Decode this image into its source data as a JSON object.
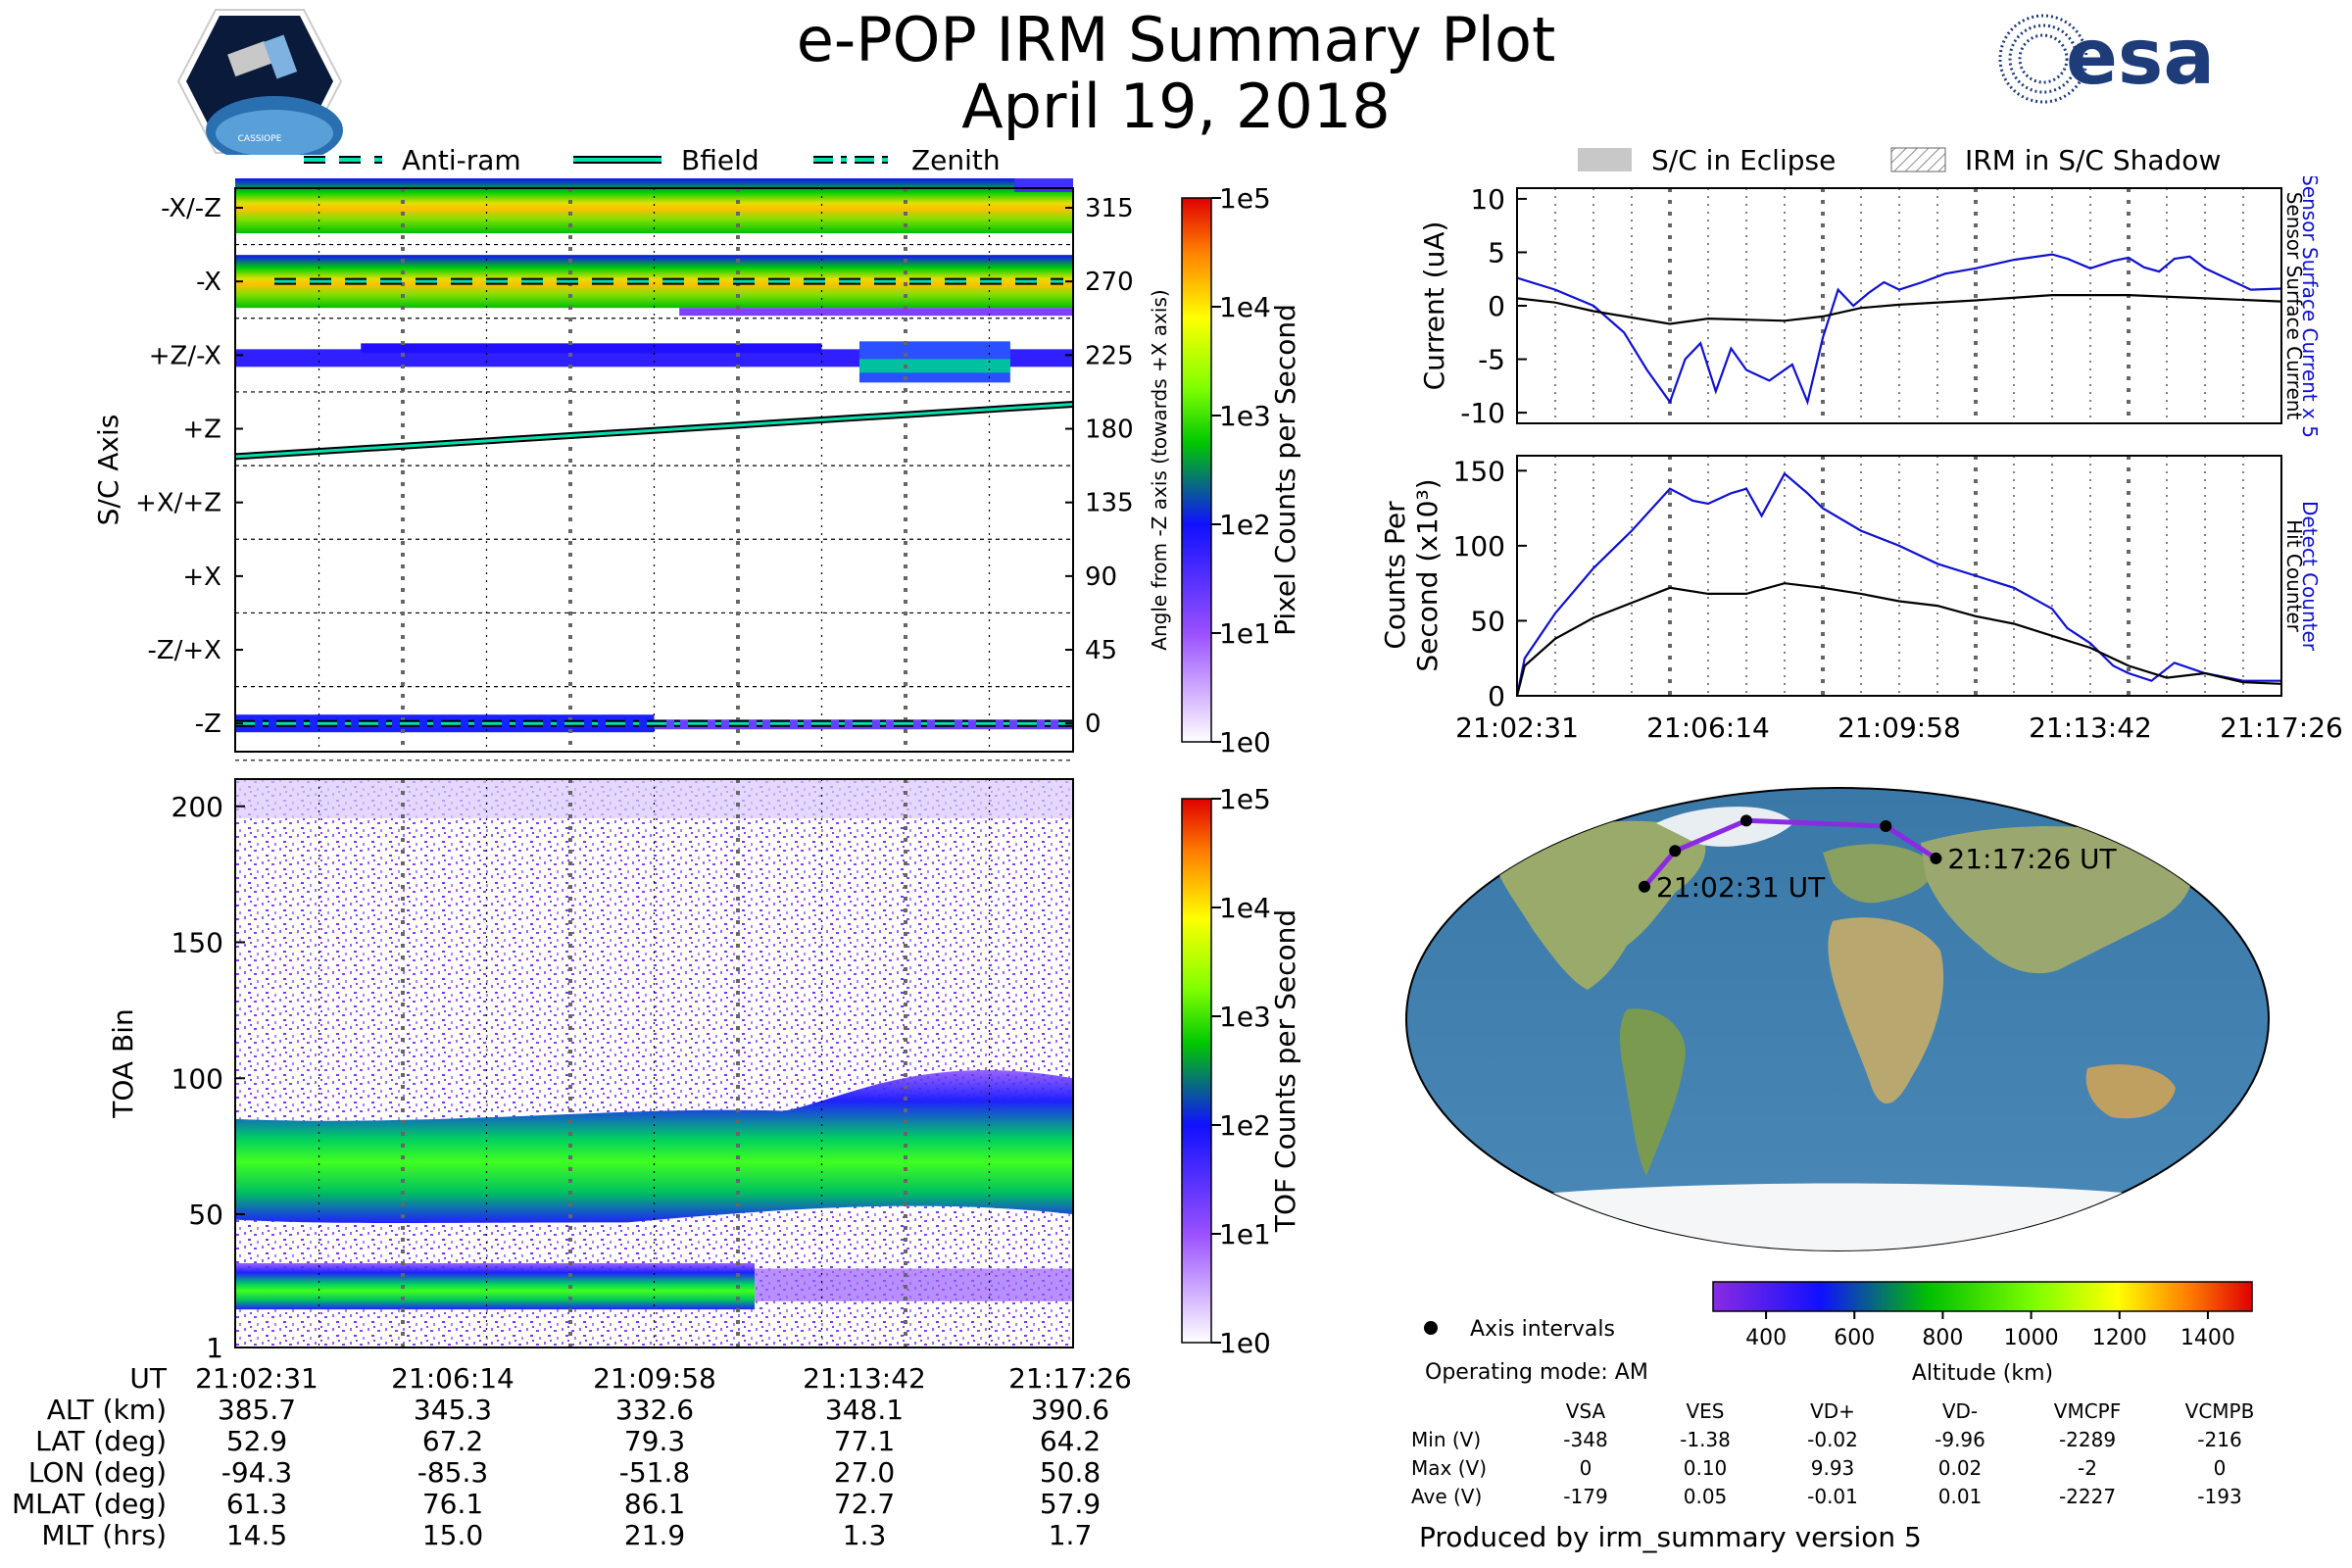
{
  "header": {
    "title": "e-POP IRM Summary Plot",
    "date": "April 19, 2018",
    "esa_logo_text": "esa",
    "cassiope_logo_text": "CASSIOPE"
  },
  "colors": {
    "cyan": "#00e0b0",
    "blue_line": "#1010d0",
    "purple_track": "#8a2be2"
  },
  "legend_top": {
    "items": [
      "Anti-ram",
      "Bfield",
      "Zenith"
    ]
  },
  "legend_right": {
    "items": [
      "S/C in Eclipse",
      "IRM in S/C Shadow"
    ]
  },
  "time_ticks": [
    "21:02:31",
    "21:06:14",
    "21:09:58",
    "21:13:42",
    "21:17:26"
  ],
  "chart_data": [
    {
      "type": "heatmap",
      "id": "pixel_counts",
      "ylabel": "S/C Axis",
      "y_categories": [
        "-X/-Z",
        "-X",
        "+Z/-X",
        "+Z",
        "+X/+Z",
        "+X",
        "-Z/+X",
        "-Z"
      ],
      "right_axis_label": "Angle from -Z axis (towards +X axis)",
      "right_ticks": [
        315,
        270,
        225,
        180,
        135,
        90,
        45,
        0
      ],
      "colorbar_label": "Pixel Counts per Second",
      "colorbar_ticks": [
        "1e5",
        "1e4",
        "1e3",
        "1e2",
        "1e1",
        "1e0"
      ],
      "series": [
        {
          "name": "Bfield",
          "angle_start": 163,
          "angle_end": 195
        },
        {
          "name": "Anti-ram",
          "angle": 270
        },
        {
          "name": "Zenith",
          "angle": 0
        }
      ]
    },
    {
      "type": "heatmap",
      "id": "tof_counts",
      "ylabel": "TOA Bin",
      "yticks": [
        1,
        50,
        100,
        150,
        200
      ],
      "ylim": [
        1,
        210
      ],
      "colorbar_label": "TOF Counts per Second",
      "colorbar_ticks": [
        "1e5",
        "1e4",
        "1e3",
        "1e2",
        "1e1",
        "1e0"
      ]
    },
    {
      "type": "line",
      "id": "current",
      "ylabel": "Current (uA)",
      "ylim": [
        -11,
        11
      ],
      "yticks": [
        10,
        5,
        0,
        -5,
        -10
      ],
      "right_labels": [
        "Sensor Surface Current x 5",
        "Sensor Surface Current"
      ],
      "series": [
        {
          "name": "Sensor Surface Current x 5",
          "color": "#1010d0",
          "x": [
            0,
            0.05,
            0.1,
            0.14,
            0.17,
            0.2,
            0.22,
            0.24,
            0.26,
            0.28,
            0.3,
            0.33,
            0.36,
            0.38,
            0.4,
            0.42,
            0.44,
            0.46,
            0.48,
            0.5,
            0.53,
            0.56,
            0.6,
            0.65,
            0.7,
            0.72,
            0.75,
            0.78,
            0.8,
            0.82,
            0.84,
            0.86,
            0.88,
            0.9,
            0.93,
            0.96,
            1.0
          ],
          "values": [
            2.6,
            1.5,
            0.0,
            -2.5,
            -6,
            -9,
            -5,
            -3.5,
            -8,
            -4,
            -6,
            -7,
            -5.5,
            -9,
            -3,
            1.5,
            0,
            1.2,
            2.2,
            1.5,
            2.2,
            3,
            3.5,
            4.3,
            4.8,
            4.4,
            3.5,
            4.2,
            4.5,
            3.6,
            3.2,
            4.4,
            4.6,
            3.5,
            2.5,
            1.5,
            1.6
          ]
        },
        {
          "name": "Sensor Surface Current",
          "color": "#000000",
          "x": [
            0,
            0.05,
            0.1,
            0.15,
            0.2,
            0.25,
            0.3,
            0.35,
            0.4,
            0.45,
            0.5,
            0.6,
            0.7,
            0.8,
            0.9,
            1.0
          ],
          "values": [
            0.7,
            0.3,
            -0.5,
            -1.1,
            -1.7,
            -1.2,
            -1.3,
            -1.4,
            -1.0,
            -0.2,
            0.1,
            0.5,
            1.0,
            1.0,
            0.7,
            0.4
          ]
        }
      ]
    },
    {
      "type": "line",
      "id": "hit_counter",
      "ylabel": "Counts Per Second (x10³)",
      "ylim": [
        0,
        160
      ],
      "yticks": [
        0,
        50,
        100,
        150
      ],
      "right_labels": [
        "Detect Counter",
        "Hit Counter"
      ],
      "series": [
        {
          "name": "Detect Counter",
          "color": "#1010d0",
          "x": [
            0,
            0.01,
            0.05,
            0.1,
            0.15,
            0.2,
            0.23,
            0.25,
            0.28,
            0.3,
            0.32,
            0.35,
            0.38,
            0.4,
            0.45,
            0.5,
            0.55,
            0.6,
            0.65,
            0.7,
            0.72,
            0.75,
            0.78,
            0.8,
            0.83,
            0.86,
            0.9,
            0.95,
            1.0
          ],
          "values": [
            0,
            25,
            55,
            85,
            110,
            138,
            130,
            128,
            135,
            138,
            120,
            148,
            135,
            125,
            110,
            100,
            88,
            80,
            72,
            58,
            45,
            35,
            20,
            15,
            10,
            22,
            15,
            10,
            10
          ]
        },
        {
          "name": "Hit Counter",
          "color": "#000000",
          "x": [
            0,
            0.01,
            0.05,
            0.1,
            0.15,
            0.2,
            0.25,
            0.3,
            0.35,
            0.4,
            0.45,
            0.5,
            0.55,
            0.6,
            0.65,
            0.7,
            0.75,
            0.8,
            0.85,
            0.9,
            0.95,
            1.0
          ],
          "values": [
            0,
            20,
            38,
            52,
            62,
            72,
            68,
            68,
            75,
            72,
            68,
            63,
            60,
            53,
            48,
            40,
            32,
            20,
            12,
            15,
            9,
            8
          ]
        }
      ]
    },
    {
      "type": "map",
      "id": "orbit_track",
      "start_label": "21:02:31 UT",
      "end_label": "21:17:26 UT",
      "track_lon": [
        -94.3,
        -85.3,
        -51.8,
        27.0,
        50.8
      ],
      "track_lat": [
        52.9,
        67.2,
        79.3,
        77.1,
        64.2
      ],
      "altitude_colorbar_label": "Altitude (km)",
      "altitude_ticks": [
        400,
        600,
        800,
        1000,
        1200,
        1400
      ]
    }
  ],
  "orbit_table": {
    "row_labels": [
      "UT",
      "ALT (km)",
      "LAT (deg)",
      "LON (deg)",
      "MLAT (deg)",
      "MLT (hrs)"
    ],
    "rows": [
      [
        "21:02:31",
        "21:06:14",
        "21:09:58",
        "21:13:42",
        "21:17:26"
      ],
      [
        "385.7",
        "345.3",
        "332.6",
        "348.1",
        "390.6"
      ],
      [
        "52.9",
        "67.2",
        "79.3",
        "77.1",
        "64.2"
      ],
      [
        "-94.3",
        "-85.3",
        "-51.8",
        "27.0",
        "50.8"
      ],
      [
        "61.3",
        "76.1",
        "86.1",
        "72.7",
        "57.9"
      ],
      [
        "14.5",
        "15.0",
        "21.9",
        "1.3",
        "1.7"
      ]
    ]
  },
  "info": {
    "axis_intervals": "Axis intervals",
    "operating_mode": "Operating mode: AM",
    "produced_by": "Produced by irm_summary version 5"
  },
  "voltage_table": {
    "columns": [
      "VSA",
      "VES",
      "VD+",
      "VD-",
      "VMCPF",
      "VCMPB"
    ],
    "row_labels": [
      "Min (V)",
      "Max (V)",
      "Ave (V)"
    ],
    "rows": [
      [
        "-348",
        "-1.38",
        "-0.02",
        "-9.96",
        "-2289",
        "-216"
      ],
      [
        "0",
        "0.10",
        "9.93",
        "0.02",
        "-2",
        "0"
      ],
      [
        "-179",
        "0.05",
        "-0.01",
        "0.01",
        "-2227",
        "-193"
      ]
    ]
  }
}
